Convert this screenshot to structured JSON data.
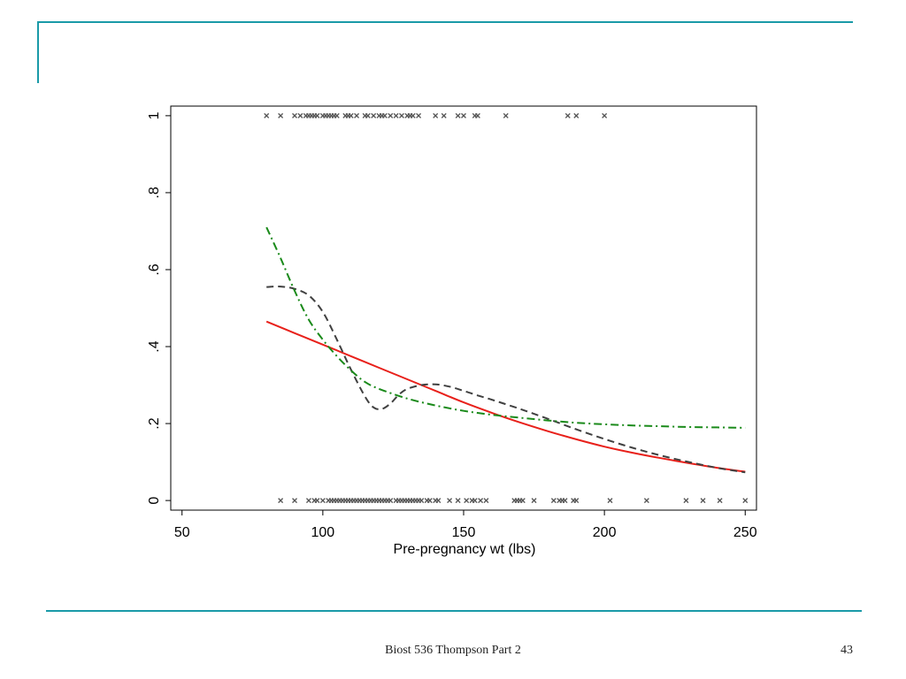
{
  "accent_color": "#1a9aa8",
  "footer": {
    "course": "Biost 536 Thompson Part 2",
    "page": "43"
  },
  "chart_data": {
    "type": "scatter",
    "title": "",
    "xlabel": "Pre-pregnancy wt (lbs)",
    "ylabel": "",
    "xlim": [
      46,
      254
    ],
    "ylim": [
      -0.025,
      1.025
    ],
    "x_ticks": [
      50,
      100,
      150,
      200,
      250
    ],
    "x_tick_labels": [
      "50",
      "100",
      "150",
      "200",
      "250"
    ],
    "y_ticks": [
      0,
      0.2,
      0.4,
      0.6,
      0.8,
      1
    ],
    "y_tick_labels": [
      "0",
      ".2",
      ".4",
      ".6",
      ".8",
      "1"
    ],
    "grid": false,
    "legend": "none",
    "points": {
      "marker": "x",
      "color": "#555555",
      "y1": [
        80,
        85,
        90,
        92,
        94,
        95,
        96,
        97,
        98,
        100,
        101,
        102,
        103,
        104,
        105,
        108,
        109,
        110,
        112,
        115,
        116,
        118,
        120,
        121,
        122,
        124,
        126,
        128,
        130,
        131,
        132,
        134,
        140,
        143,
        148,
        150,
        154,
        155,
        165,
        187,
        190,
        200
      ],
      "y0": [
        85,
        90,
        95,
        97,
        98,
        100,
        102,
        103,
        104,
        105,
        106,
        107,
        108,
        109,
        110,
        111,
        112,
        113,
        114,
        115,
        116,
        117,
        118,
        119,
        120,
        121,
        122,
        123,
        124,
        126,
        127,
        128,
        129,
        130,
        131,
        132,
        133,
        134,
        135,
        137,
        138,
        140,
        141,
        145,
        148,
        151,
        153,
        154,
        156,
        158,
        168,
        169,
        170,
        171,
        175,
        182,
        184,
        185,
        186,
        189,
        190,
        202,
        215,
        229,
        235,
        241,
        250
      ]
    },
    "series": [
      {
        "style": "solid",
        "color": "#e8201a",
        "x": [
          80,
          90,
          100,
          110,
          120,
          130,
          140,
          150,
          160,
          170,
          180,
          190,
          200,
          210,
          220,
          230,
          240,
          250
        ],
        "y": [
          0.465,
          0.435,
          0.405,
          0.375,
          0.345,
          0.315,
          0.285,
          0.255,
          0.228,
          0.203,
          0.18,
          0.159,
          0.14,
          0.124,
          0.11,
          0.097,
          0.085,
          0.075
        ]
      },
      {
        "style": "dash",
        "color": "#404040",
        "x": [
          80,
          85,
          90,
          95,
          100,
          105,
          110,
          115,
          118,
          121,
          124,
          127,
          130,
          135,
          140,
          145,
          150,
          155,
          160,
          170,
          180,
          190,
          200,
          210,
          220,
          230,
          240,
          250
        ],
        "y": [
          0.555,
          0.556,
          0.55,
          0.533,
          0.49,
          0.418,
          0.34,
          0.27,
          0.242,
          0.238,
          0.252,
          0.275,
          0.29,
          0.3,
          0.302,
          0.296,
          0.285,
          0.273,
          0.262,
          0.238,
          0.212,
          0.185,
          0.16,
          0.137,
          0.117,
          0.1,
          0.085,
          0.073
        ]
      },
      {
        "style": "dashdot",
        "color": "#1a8a1a",
        "x": [
          80,
          85,
          90,
          95,
          100,
          105,
          110,
          115,
          120,
          130,
          140,
          150,
          160,
          170,
          180,
          190,
          200,
          210,
          220,
          230,
          240,
          250
        ],
        "y": [
          0.71,
          0.63,
          0.545,
          0.47,
          0.418,
          0.375,
          0.338,
          0.308,
          0.29,
          0.265,
          0.247,
          0.233,
          0.223,
          0.215,
          0.208,
          0.202,
          0.198,
          0.195,
          0.193,
          0.191,
          0.19,
          0.189
        ]
      }
    ]
  }
}
